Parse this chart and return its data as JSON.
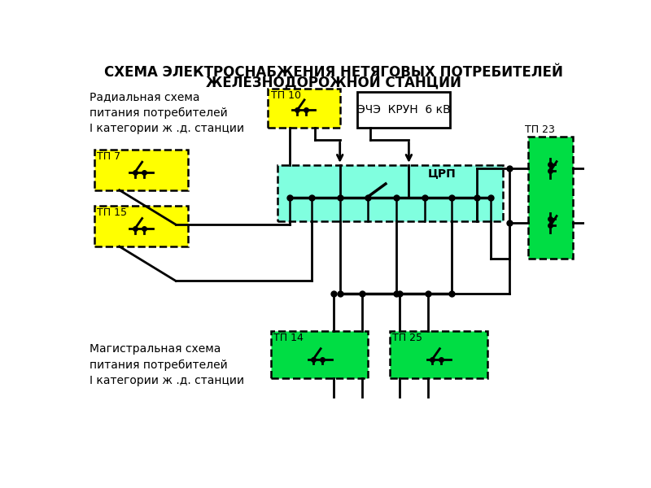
{
  "title_line1": "СХЕМА ЭЛЕКТРОСНАБЖЕНИЯ НЕТЯГОВЫХ ПОТРЕБИТЕЛЕЙ",
  "title_line2": "ЖЕЛЕЗНОДОРОЖНОЙ СТАНЦИИ",
  "label_radial": "Радиальная схема\nпитания потребителей\nI категории ж .д. станции",
  "label_magistral": "Магистральная схема\nпитания потребителей\nI категории ж .д. станции",
  "label_echz": "ЭЧЭ  КРУН  6 кВ",
  "label_crp": "ЦРП",
  "label_tp10": "ТП 10",
  "label_tp7": "ТП 7",
  "label_tp15": "ТП 15",
  "label_tp23": "ТП 23",
  "label_tp14": "ТП 14",
  "label_tp25": "ТП 25",
  "bg_color": "#ffffff",
  "yellow_fill": "#ffff00",
  "cyan_fill": "#80ffdf",
  "green_fill": "#00dd44",
  "line_color": "#000000",
  "title_fontsize": 12,
  "label_fontsize": 10
}
